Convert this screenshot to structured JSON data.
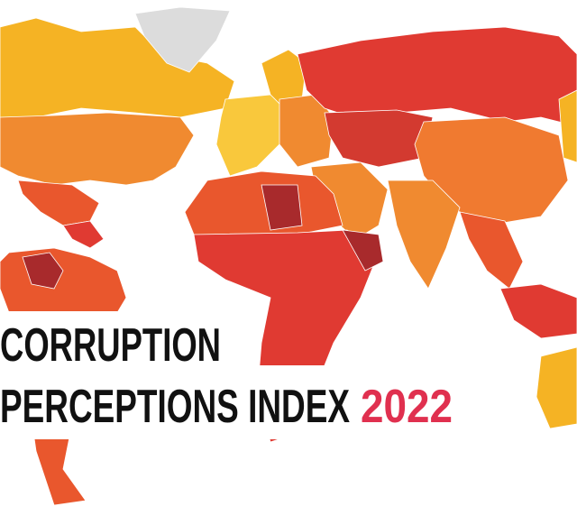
{
  "title": {
    "line1": "CORRUPTION",
    "line2": "PERCEPTIONS INDEX",
    "year": "2022"
  }
}
